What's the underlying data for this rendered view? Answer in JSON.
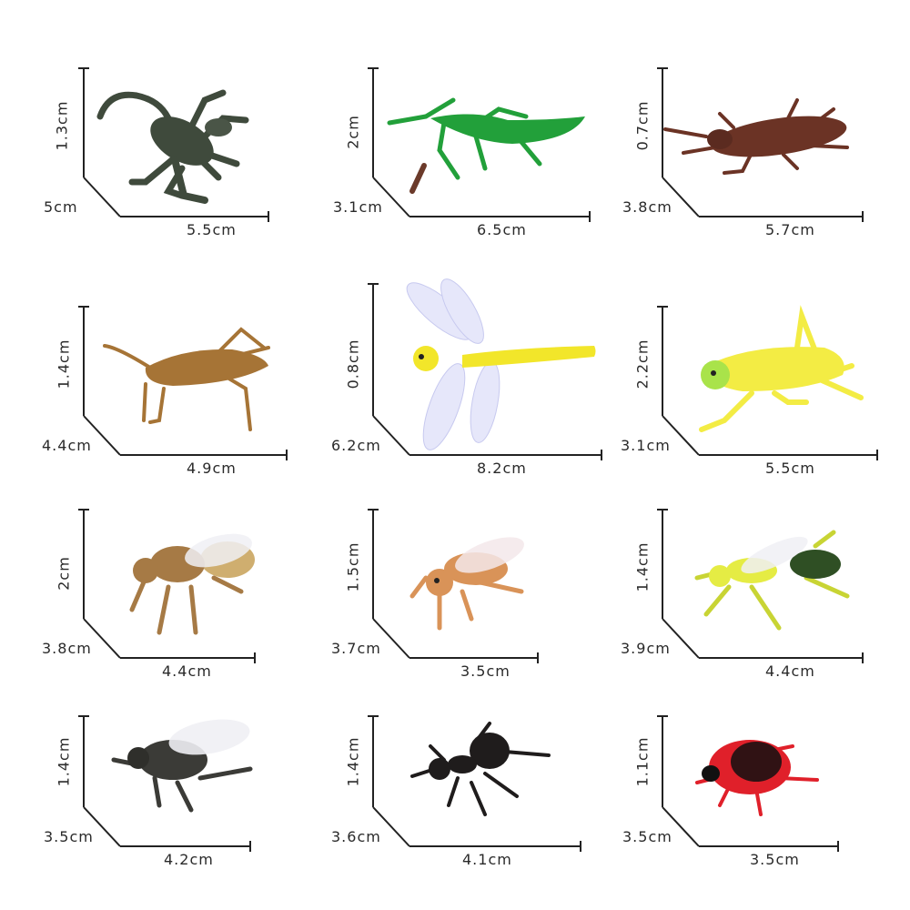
{
  "colors": {
    "background": "#ffffff",
    "dimension_line": "#222222",
    "label": "#2a2a2a"
  },
  "specimens": [
    {
      "icon": "scorpion-icon",
      "height": "1.3cm",
      "depth": "5cm",
      "length": "5.5cm",
      "color": "#3f4a3c"
    },
    {
      "icon": "mantis-icon",
      "height": "2cm",
      "depth": "3.1cm",
      "length": "6.5cm",
      "color": "#22a03a"
    },
    {
      "icon": "cockroach-icon",
      "height": "0.7cm",
      "depth": "3.8cm",
      "length": "5.7cm",
      "color": "#6b3325"
    },
    {
      "icon": "cricket-icon",
      "height": "1.4cm",
      "depth": "4.4cm",
      "length": "4.9cm",
      "color": "#a67436"
    },
    {
      "icon": "dragonfly-icon",
      "height": "0.8cm",
      "depth": "6.2cm",
      "length": "8.2cm",
      "color": "#f2e62a"
    },
    {
      "icon": "grasshopper-icon",
      "height": "2.2cm",
      "depth": "3.1cm",
      "length": "5.5cm",
      "color": "#f3ec44"
    },
    {
      "icon": "bee-icon",
      "height": "2cm",
      "depth": "3.8cm",
      "length": "4.4cm",
      "color": "#a67a45"
    },
    {
      "icon": "wasp-icon",
      "height": "1.5cm",
      "depth": "3.7cm",
      "length": "3.5cm",
      "color": "#d99358"
    },
    {
      "icon": "hornet-icon",
      "height": "1.4cm",
      "depth": "3.9cm",
      "length": "4.4cm",
      "color": "#2f4f24"
    },
    {
      "icon": "housefly-icon",
      "height": "1.4cm",
      "depth": "3.5cm",
      "length": "4.2cm",
      "color": "#3b3b37"
    },
    {
      "icon": "ant-icon",
      "height": "1.4cm",
      "depth": "3.6cm",
      "length": "4.1cm",
      "color": "#1f1c1c"
    },
    {
      "icon": "ladybug-icon",
      "height": "1.1cm",
      "depth": "3.5cm",
      "length": "3.5cm",
      "color": "#e0202a"
    }
  ]
}
